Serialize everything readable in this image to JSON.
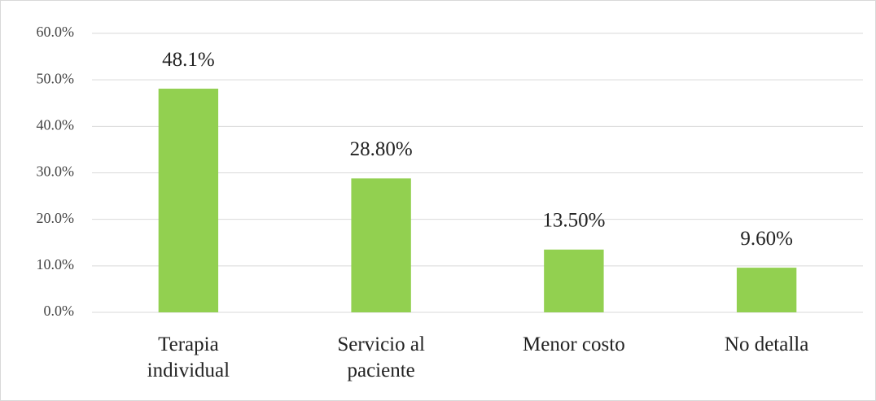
{
  "chart_data": {
    "type": "bar",
    "categories": [
      "Terapia individual",
      "Servicio al paciente",
      "Menor costo",
      "No detalla"
    ],
    "values": [
      48.1,
      28.8,
      13.5,
      9.6
    ],
    "value_labels": [
      "48.1%",
      "28.80%",
      "13.50%",
      "9.60%"
    ],
    "color": "#92d050",
    "ylim": [
      0,
      60
    ],
    "yticks": [
      {
        "value": 0,
        "label": "0.0%"
      },
      {
        "value": 10,
        "label": "10.0%"
      },
      {
        "value": 20,
        "label": "20.0%"
      },
      {
        "value": 30,
        "label": "30.0%"
      },
      {
        "value": 40,
        "label": "40.0%"
      },
      {
        "value": 50,
        "label": "50.0%"
      },
      {
        "value": 60,
        "label": "60.0%"
      }
    ],
    "grid": true
  }
}
